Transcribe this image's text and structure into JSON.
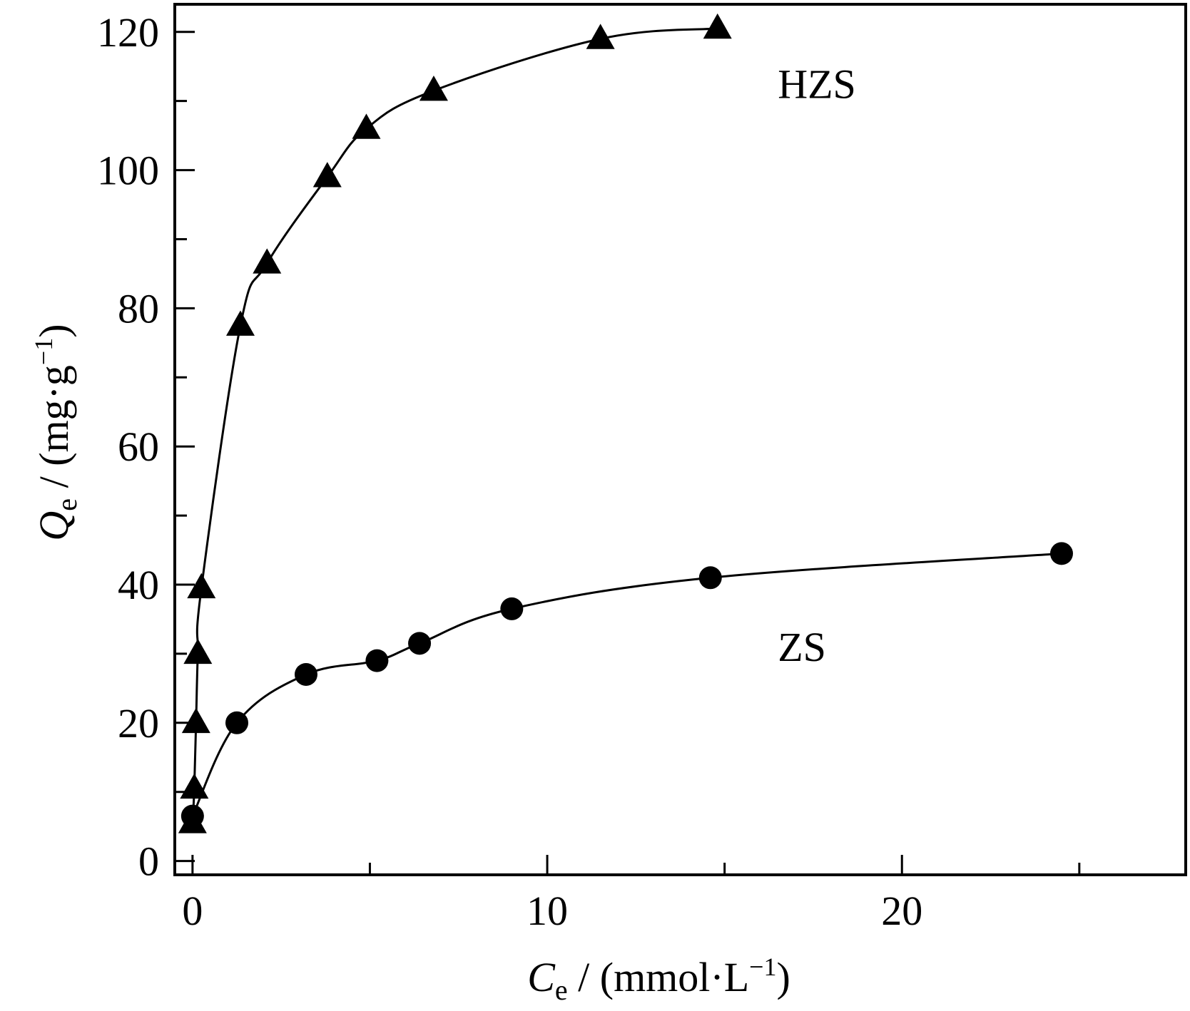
{
  "chart_data": {
    "type": "scatter",
    "title": "",
    "xlabel": {
      "symbol": "C",
      "subscript": "e",
      "unit": " / (mmol·L",
      "exponent": "−1",
      "close": ")"
    },
    "ylabel": {
      "symbol": "Q",
      "subscript": "e",
      "unit": " / (mg·g",
      "exponent": "−1",
      "close": ")"
    },
    "xlim": [
      -0.5,
      28
    ],
    "ylim": [
      -2,
      124
    ],
    "x_ticks": [
      0,
      10,
      20
    ],
    "x_minor_ticks": [
      5,
      15,
      25
    ],
    "y_ticks": [
      0,
      20,
      40,
      60,
      80,
      100,
      120
    ],
    "y_minor_ticks": [
      10,
      30,
      50,
      70,
      90,
      110
    ],
    "x_tick_labels": [
      "0",
      "10",
      "20"
    ],
    "y_tick_labels": [
      "0",
      "20",
      "40",
      "60",
      "80",
      "100",
      "120"
    ],
    "grid": false,
    "legend": "none",
    "series": [
      {
        "name": "HZS",
        "marker": "triangle",
        "color": "#000000",
        "points": [
          {
            "x": 0.0,
            "y": 5.5
          },
          {
            "x": 0.05,
            "y": 10.5
          },
          {
            "x": 0.1,
            "y": 20.0
          },
          {
            "x": 0.15,
            "y": 30.0
          },
          {
            "x": 0.25,
            "y": 39.5
          },
          {
            "x": 1.35,
            "y": 77.5
          },
          {
            "x": 2.1,
            "y": 86.5
          },
          {
            "x": 3.8,
            "y": 99.0
          },
          {
            "x": 4.9,
            "y": 106.0
          },
          {
            "x": 6.8,
            "y": 111.5
          },
          {
            "x": 11.5,
            "y": 119.0
          },
          {
            "x": 14.8,
            "y": 120.5
          }
        ]
      },
      {
        "name": "ZS",
        "marker": "circle",
        "color": "#000000",
        "points": [
          {
            "x": 0.0,
            "y": 6.5
          },
          {
            "x": 1.25,
            "y": 20.0
          },
          {
            "x": 3.2,
            "y": 27.0
          },
          {
            "x": 5.2,
            "y": 29.0
          },
          {
            "x": 6.4,
            "y": 31.5
          },
          {
            "x": 9.0,
            "y": 36.5
          },
          {
            "x": 14.6,
            "y": 41.0
          },
          {
            "x": 24.5,
            "y": 44.5
          }
        ]
      }
    ],
    "annotations": [
      {
        "text": "HZS",
        "x": 16.5,
        "y": 112.5
      },
      {
        "text": "ZS",
        "x": 16.5,
        "y": 31.0
      }
    ]
  }
}
